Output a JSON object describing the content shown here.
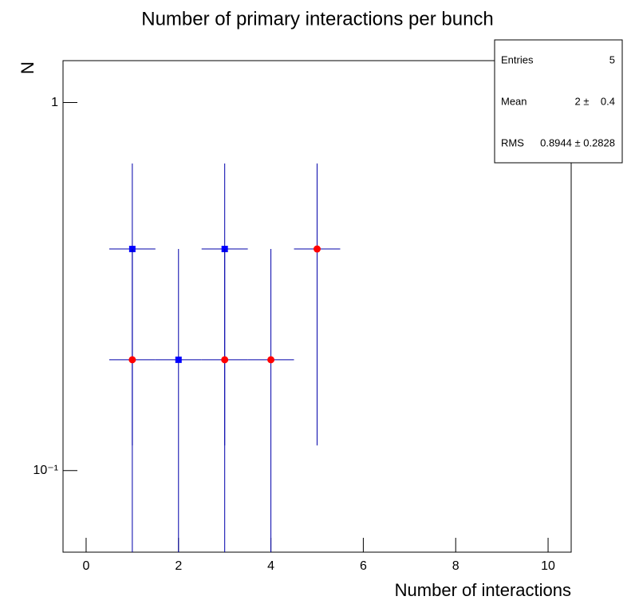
{
  "chart_data": {
    "type": "errorbar",
    "title": "Number of primary interactions per bunch",
    "x_label": "Number of interactions",
    "y_label": "N",
    "xlim": [
      -0.5,
      10.5
    ],
    "ylim": [
      0.06,
      1.3
    ],
    "log_y": true,
    "xticks": [
      0,
      2,
      4,
      6,
      8,
      10
    ],
    "yticks": [
      {
        "value": 0.1,
        "label": "10⁻¹"
      },
      1
    ],
    "series": [
      {
        "marker": "square",
        "color": "#0000ff",
        "line_color": "#0000aa",
        "x": [
          1,
          2,
          3
        ],
        "values": [
          0.4,
          0.2,
          0.4
        ],
        "xerr": [
          0.5,
          0.5,
          0.5
        ],
        "yerr": [
          0.283,
          0.2,
          0.283
        ]
      },
      {
        "marker": "circle",
        "color": "#ff0000",
        "line_color": "#0000aa",
        "x": [
          1,
          3,
          4,
          5
        ],
        "values": [
          0.2,
          0.2,
          0.2,
          0.4
        ],
        "xerr": [
          0.5,
          0.5,
          0.5,
          0.5
        ],
        "yerr": [
          0.2,
          0.2,
          0.2,
          0.283
        ]
      }
    ],
    "stats": [
      {
        "label": "Entries",
        "value": "5"
      },
      {
        "label": "Mean",
        "value": "2 ±    0.4"
      },
      {
        "label": "RMS",
        "value": "0.8944 ± 0.2828"
      }
    ]
  }
}
